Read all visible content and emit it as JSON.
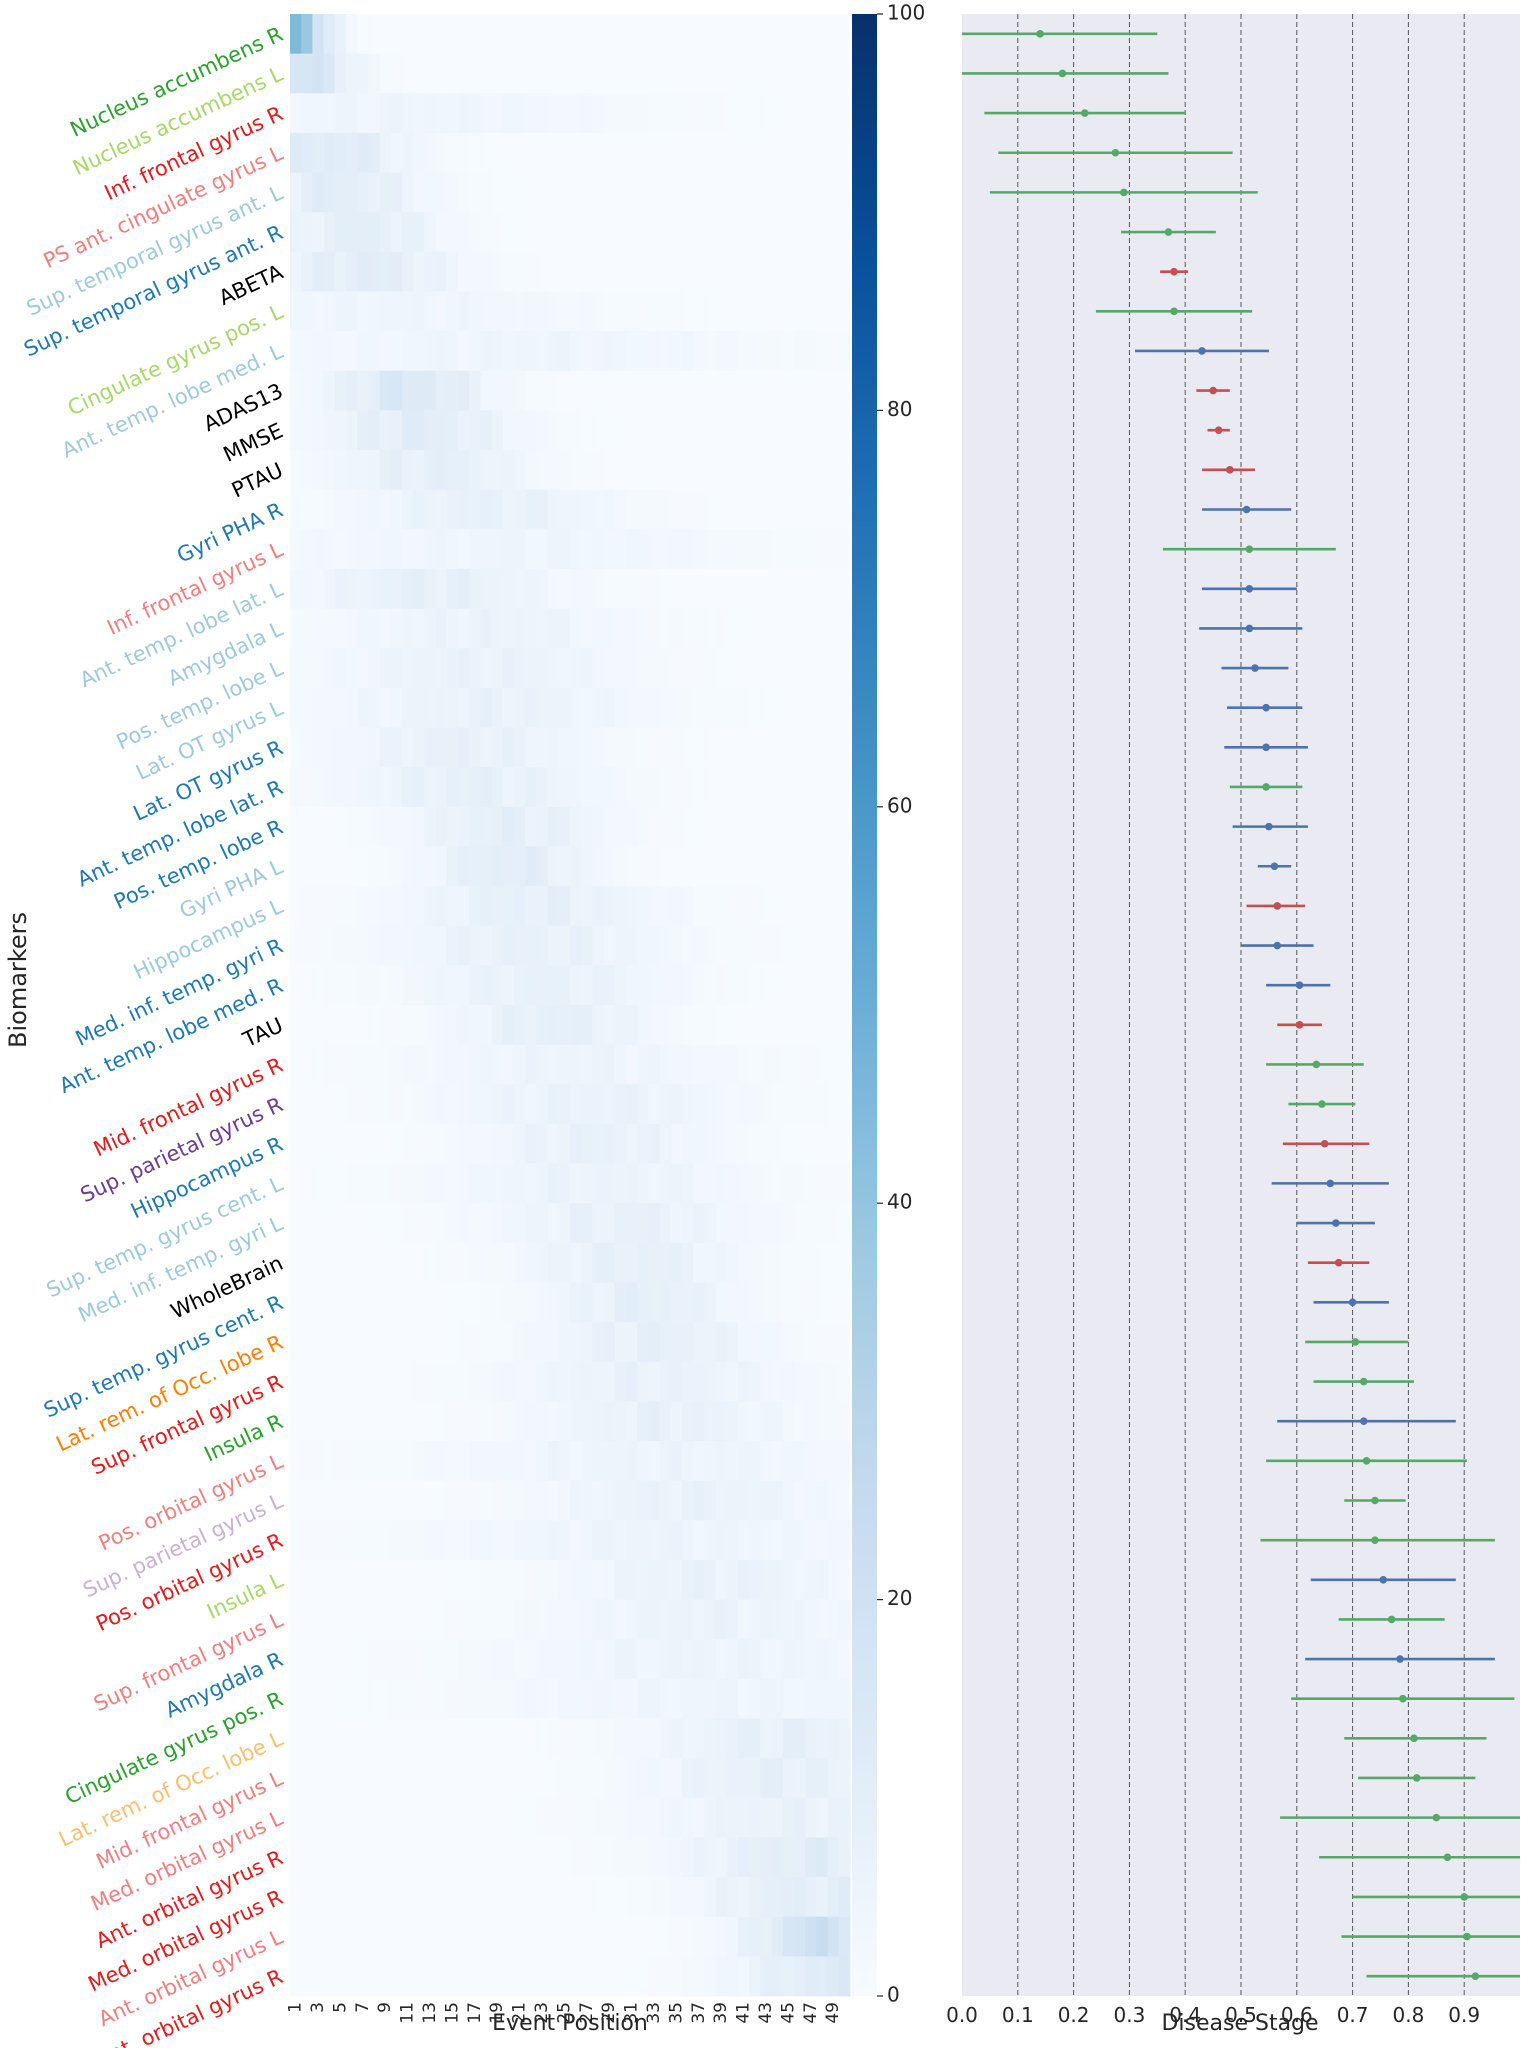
{
  "chart_data": [
    {
      "type": "heatmap",
      "title": "",
      "xlabel": "Event Position",
      "ylabel": "Biomarkers",
      "x_tick_labels": [
        "1",
        "3",
        "5",
        "7",
        "9",
        "11",
        "13",
        "15",
        "17",
        "19",
        "21",
        "23",
        "25",
        "27",
        "29",
        "31",
        "33",
        "35",
        "37",
        "39",
        "41",
        "43",
        "45",
        "47",
        "49"
      ],
      "n_positions": 50,
      "colormap": "Blues",
      "colorbar": {
        "min": 0,
        "max": 100,
        "ticks": [
          "0",
          "20",
          "40",
          "60",
          "80",
          "100"
        ]
      },
      "biomarkers": [
        {
          "name": "Nucleus accumbens R",
          "color": "#2ca02c",
          "peak": 1,
          "width": 2,
          "max": 55
        },
        {
          "name": "Nucleus accumbens L",
          "color": "#a6d96a",
          "peak": 2,
          "width": 3,
          "max": 22
        },
        {
          "name": "Inf. frontal gyrus R",
          "color": "#e41a1c",
          "peak": 10,
          "width": 14,
          "max": 6
        },
        {
          "name": "PS ant. cingulate gyrus L",
          "color": "#f08080",
          "peak": 4,
          "width": 5,
          "max": 16
        },
        {
          "name": "Sup. temporal gyrus ant. L",
          "color": "#9ecae1",
          "peak": 4,
          "width": 6,
          "max": 14
        },
        {
          "name": "Sup. temporal gyrus ant. R",
          "color": "#1f78b4",
          "peak": 7,
          "width": 5,
          "max": 13
        },
        {
          "name": "ABETA",
          "color": "#000000",
          "peak": 7,
          "width": 6,
          "max": 14
        },
        {
          "name": "Cingulate gyrus  pos. L",
          "color": "#a6d96a",
          "peak": 10,
          "width": 12,
          "max": 6
        },
        {
          "name": "Ant. temp. lobe med. L",
          "color": "#9ecae1",
          "peak": 20,
          "width": 16,
          "max": 6
        },
        {
          "name": "ADAS13",
          "color": "#000000",
          "peak": 11,
          "width": 5,
          "max": 18
        },
        {
          "name": "MMSE",
          "color": "#000000",
          "peak": 12,
          "width": 6,
          "max": 14
        },
        {
          "name": "PTAU",
          "color": "#000000",
          "peak": 13,
          "width": 6,
          "max": 12
        },
        {
          "name": "Gyri PHA R",
          "color": "#1f78b4",
          "peak": 18,
          "width": 8,
          "max": 10
        },
        {
          "name": "Inf. frontal gyrus L",
          "color": "#f08080",
          "peak": 20,
          "width": 14,
          "max": 6
        },
        {
          "name": "Ant. temp. lobe lat. L",
          "color": "#9ecae1",
          "peak": 13,
          "width": 8,
          "max": 11
        },
        {
          "name": "Amygdala L",
          "color": "#9ecae1",
          "peak": 18,
          "width": 9,
          "max": 8
        },
        {
          "name": "Pos. temp. lobe L",
          "color": "#9ecae1",
          "peak": 17,
          "width": 9,
          "max": 9
        },
        {
          "name": "Lat. OT gyrus L",
          "color": "#9ecae1",
          "peak": 18,
          "width": 10,
          "max": 9
        },
        {
          "name": "Lat. OT gyrus R",
          "color": "#1f78b4",
          "peak": 16,
          "width": 8,
          "max": 10
        },
        {
          "name": "Ant. temp. lobe lat. R",
          "color": "#1f78b4",
          "peak": 17,
          "width": 8,
          "max": 11
        },
        {
          "name": "Pos. temp. lobe R",
          "color": "#1f78b4",
          "peak": 20,
          "width": 6,
          "max": 12
        },
        {
          "name": "Gyri PHA L",
          "color": "#9ecae1",
          "peak": 20,
          "width": 5,
          "max": 14
        },
        {
          "name": "Hippocampus L",
          "color": "#9ecae1",
          "peak": 22,
          "width": 8,
          "max": 11
        },
        {
          "name": "Med. inf. temp. gyri R",
          "color": "#1f78b4",
          "peak": 22,
          "width": 9,
          "max": 10
        },
        {
          "name": "Ant. temp. lobe med. R",
          "color": "#1f78b4",
          "peak": 23,
          "width": 8,
          "max": 10
        },
        {
          "name": "TAU",
          "color": "#000000",
          "peak": 24,
          "width": 6,
          "max": 12
        },
        {
          "name": "Mid. frontal gyrus R",
          "color": "#e41a1c",
          "peak": 26,
          "width": 10,
          "max": 7
        },
        {
          "name": "Sup. parietal gyrus R",
          "color": "#6a3d9a",
          "peak": 27,
          "width": 9,
          "max": 9
        },
        {
          "name": "Hippocampus R",
          "color": "#1f78b4",
          "peak": 28,
          "width": 7,
          "max": 10
        },
        {
          "name": "Sup. temp. gyrus cent. L",
          "color": "#9ecae1",
          "peak": 28,
          "width": 10,
          "max": 8
        },
        {
          "name": "Med. inf. temp. gyri L",
          "color": "#9ecae1",
          "peak": 30,
          "width": 8,
          "max": 10
        },
        {
          "name": "WholeBrain",
          "color": "#000000",
          "peak": 31,
          "width": 7,
          "max": 11
        },
        {
          "name": "Sup. temp. gyrus cent. R",
          "color": "#1f78b4",
          "peak": 32,
          "width": 6,
          "max": 12
        },
        {
          "name": "Lat. rem. of Occ. lobe R",
          "color": "#ff7f00",
          "peak": 33,
          "width": 7,
          "max": 11
        },
        {
          "name": "Sup. frontal gyrus R",
          "color": "#e41a1c",
          "peak": 33,
          "width": 9,
          "max": 9
        },
        {
          "name": "Insula R",
          "color": "#2ca02c",
          "peak": 34,
          "width": 8,
          "max": 10
        },
        {
          "name": "Pos. orbital gyrus L",
          "color": "#f08080",
          "peak": 33,
          "width": 13,
          "max": 7
        },
        {
          "name": "Sup. parietal gyrus L",
          "color": "#cab2d6",
          "peak": 36,
          "width": 9,
          "max": 9
        },
        {
          "name": "Pos. orbital gyrus R",
          "color": "#e41a1c",
          "peak": 34,
          "width": 14,
          "max": 7
        },
        {
          "name": "Insula L",
          "color": "#a6d96a",
          "peak": 38,
          "width": 9,
          "max": 9
        },
        {
          "name": "Sup. frontal gyrus L",
          "color": "#f08080",
          "peak": 38,
          "width": 10,
          "max": 8
        },
        {
          "name": "Amygdala R",
          "color": "#1f78b4",
          "peak": 38,
          "width": 13,
          "max": 7
        },
        {
          "name": "Cingulate gyrus pos. R",
          "color": "#2ca02c",
          "peak": 39,
          "width": 14,
          "max": 6
        },
        {
          "name": "Lat. rem. of Occ. lobe L",
          "color": "#fdbf6f",
          "peak": 44,
          "width": 8,
          "max": 11
        },
        {
          "name": "Mid. frontal gyrus L",
          "color": "#f08080",
          "peak": 44,
          "width": 8,
          "max": 11
        },
        {
          "name": "Med. orbital gyrus L",
          "color": "#f08080",
          "peak": 46,
          "width": 10,
          "max": 9
        },
        {
          "name": "Ant. orbital gyrus R",
          "color": "#e41a1c",
          "peak": 47,
          "width": 8,
          "max": 14
        },
        {
          "name": "Med. orbital gyrus R",
          "color": "#e41a1c",
          "peak": 47,
          "width": 7,
          "max": 13
        },
        {
          "name": "Ant. orbital gyrus L",
          "color": "#f08080",
          "peak": 49,
          "width": 5,
          "max": 28
        },
        {
          "name": "Lat. orbital gyrus R",
          "color": "#e41a1c",
          "peak": 49,
          "width": 6,
          "max": 16
        }
      ]
    },
    {
      "type": "errorbar",
      "title": "",
      "xlabel": "Disease Stage",
      "ylabel": "",
      "xlim": [
        0,
        1.0
      ],
      "x_tick_labels": [
        "0.0",
        "0.1",
        "0.2",
        "0.3",
        "0.4",
        "0.5",
        "0.6",
        "0.7",
        "0.8",
        "0.9"
      ],
      "grid": "vertical dashed",
      "category_colors": {
        "cognitive": "#c44e52",
        "imaging_R": "#4c72b0",
        "imaging_L": "#55a868"
      },
      "points": [
        {
          "value": 0.14,
          "low": 0.0,
          "high": 0.35,
          "category": "imaging_L"
        },
        {
          "value": 0.18,
          "low": 0.0,
          "high": 0.37,
          "category": "imaging_L"
        },
        {
          "value": 0.22,
          "low": 0.04,
          "high": 0.4,
          "category": "imaging_L"
        },
        {
          "value": 0.275,
          "low": 0.065,
          "high": 0.485,
          "category": "imaging_L"
        },
        {
          "value": 0.29,
          "low": 0.05,
          "high": 0.53,
          "category": "imaging_L"
        },
        {
          "value": 0.37,
          "low": 0.285,
          "high": 0.455,
          "category": "imaging_L"
        },
        {
          "value": 0.38,
          "low": 0.355,
          "high": 0.405,
          "category": "cognitive"
        },
        {
          "value": 0.38,
          "low": 0.24,
          "high": 0.52,
          "category": "imaging_L"
        },
        {
          "value": 0.43,
          "low": 0.31,
          "high": 0.55,
          "category": "imaging_R"
        },
        {
          "value": 0.45,
          "low": 0.42,
          "high": 0.48,
          "category": "cognitive"
        },
        {
          "value": 0.46,
          "low": 0.44,
          "high": 0.48,
          "category": "cognitive"
        },
        {
          "value": 0.48,
          "low": 0.43,
          "high": 0.525,
          "category": "cognitive"
        },
        {
          "value": 0.51,
          "low": 0.43,
          "high": 0.59,
          "category": "imaging_R"
        },
        {
          "value": 0.515,
          "low": 0.36,
          "high": 0.67,
          "category": "imaging_L"
        },
        {
          "value": 0.515,
          "low": 0.43,
          "high": 0.6,
          "category": "imaging_R"
        },
        {
          "value": 0.515,
          "low": 0.425,
          "high": 0.61,
          "category": "imaging_R"
        },
        {
          "value": 0.525,
          "low": 0.465,
          "high": 0.585,
          "category": "imaging_R"
        },
        {
          "value": 0.545,
          "low": 0.475,
          "high": 0.61,
          "category": "imaging_R"
        },
        {
          "value": 0.545,
          "low": 0.47,
          "high": 0.62,
          "category": "imaging_R"
        },
        {
          "value": 0.545,
          "low": 0.48,
          "high": 0.61,
          "category": "imaging_L"
        },
        {
          "value": 0.55,
          "low": 0.485,
          "high": 0.62,
          "category": "imaging_R"
        },
        {
          "value": 0.56,
          "low": 0.53,
          "high": 0.59,
          "category": "imaging_R"
        },
        {
          "value": 0.565,
          "low": 0.51,
          "high": 0.615,
          "category": "cognitive"
        },
        {
          "value": 0.565,
          "low": 0.5,
          "high": 0.63,
          "category": "imaging_R"
        },
        {
          "value": 0.605,
          "low": 0.545,
          "high": 0.66,
          "category": "imaging_R"
        },
        {
          "value": 0.605,
          "low": 0.565,
          "high": 0.645,
          "category": "cognitive"
        },
        {
          "value": 0.635,
          "low": 0.545,
          "high": 0.72,
          "category": "imaging_L"
        },
        {
          "value": 0.645,
          "low": 0.585,
          "high": 0.705,
          "category": "imaging_L"
        },
        {
          "value": 0.65,
          "low": 0.575,
          "high": 0.73,
          "category": "cognitive"
        },
        {
          "value": 0.66,
          "low": 0.555,
          "high": 0.765,
          "category": "imaging_R"
        },
        {
          "value": 0.67,
          "low": 0.6,
          "high": 0.74,
          "category": "imaging_R"
        },
        {
          "value": 0.675,
          "low": 0.62,
          "high": 0.73,
          "category": "cognitive"
        },
        {
          "value": 0.7,
          "low": 0.63,
          "high": 0.765,
          "category": "imaging_R"
        },
        {
          "value": 0.705,
          "low": 0.615,
          "high": 0.8,
          "category": "imaging_L"
        },
        {
          "value": 0.72,
          "low": 0.63,
          "high": 0.81,
          "category": "imaging_L"
        },
        {
          "value": 0.72,
          "low": 0.565,
          "high": 0.885,
          "category": "imaging_R"
        },
        {
          "value": 0.725,
          "low": 0.545,
          "high": 0.905,
          "category": "imaging_L"
        },
        {
          "value": 0.74,
          "low": 0.685,
          "high": 0.795,
          "category": "imaging_L"
        },
        {
          "value": 0.74,
          "low": 0.535,
          "high": 0.955,
          "category": "imaging_L"
        },
        {
          "value": 0.755,
          "low": 0.625,
          "high": 0.885,
          "category": "imaging_R"
        },
        {
          "value": 0.77,
          "low": 0.675,
          "high": 0.865,
          "category": "imaging_L"
        },
        {
          "value": 0.785,
          "low": 0.615,
          "high": 0.955,
          "category": "imaging_R"
        },
        {
          "value": 0.79,
          "low": 0.59,
          "high": 0.99,
          "category": "imaging_L"
        },
        {
          "value": 0.81,
          "low": 0.685,
          "high": 0.94,
          "category": "imaging_L"
        },
        {
          "value": 0.815,
          "low": 0.71,
          "high": 0.92,
          "category": "imaging_L"
        },
        {
          "value": 0.85,
          "low": 0.57,
          "high": 1.0,
          "category": "imaging_L"
        },
        {
          "value": 0.87,
          "low": 0.64,
          "high": 1.0,
          "category": "imaging_L"
        },
        {
          "value": 0.9,
          "low": 0.7,
          "high": 1.0,
          "category": "imaging_L"
        },
        {
          "value": 0.905,
          "low": 0.68,
          "high": 1.0,
          "category": "imaging_L"
        },
        {
          "value": 0.92,
          "low": 0.725,
          "high": 1.0,
          "category": "imaging_L"
        }
      ]
    }
  ]
}
